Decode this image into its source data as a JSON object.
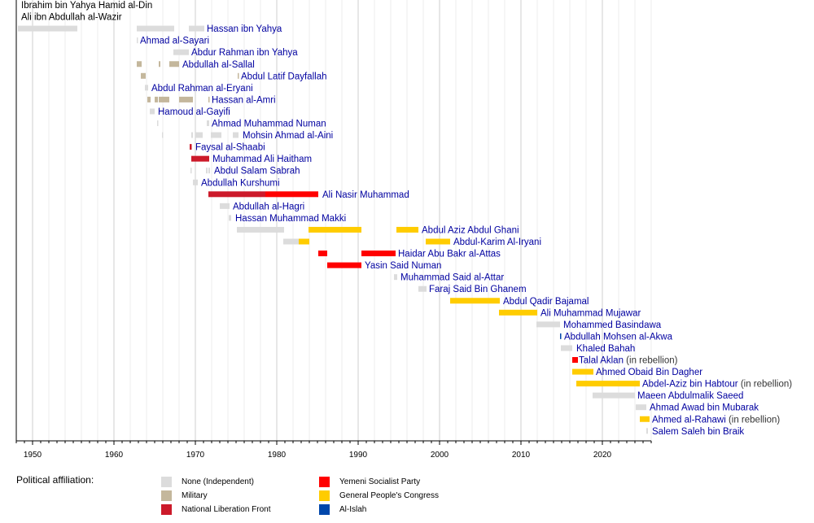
{
  "colors": {
    "none": "#dcdcdc",
    "military": "#c4b79c",
    "nlf": "#cc1a2a",
    "ysp": "#ff0000",
    "gpc": "#ffcc00",
    "islah": "#0047ab",
    "label_link": "#0000a0",
    "label_plain": "#000000",
    "note": "#333333"
  },
  "chart_data": {
    "type": "timeline",
    "title": "",
    "xlabel": "",
    "xlim": [
      1948,
      2026
    ],
    "x_ticks": [
      1950,
      1960,
      1970,
      1980,
      1990,
      2000,
      2010,
      2020
    ],
    "grid": true,
    "legend_title": "Political affiliation:",
    "legend": [
      {
        "key": "none",
        "label": "None (Independent)"
      },
      {
        "key": "military",
        "label": "Military"
      },
      {
        "key": "nlf",
        "label": "National Liberation Front"
      },
      {
        "key": "ysp",
        "label": "Yemeni Socialist Party"
      },
      {
        "key": "gpc",
        "label": "General People's Congress"
      },
      {
        "key": "islah",
        "label": "Al-Islah"
      }
    ],
    "rows": [
      {
        "name": "Ibrahim bin Yahya Hamid al-Din",
        "link": false,
        "note": "",
        "label_at": 1948.6,
        "spans": []
      },
      {
        "name": "Ali ibn Abdullah al-Wazir",
        "link": false,
        "note": "",
        "label_at": 1948.6,
        "spans": []
      },
      {
        "name": "Hassan ibn Yahya",
        "link": true,
        "note": "",
        "label_at": 1971.4,
        "spans": [
          [
            1948.2,
            1955.5,
            "none"
          ],
          [
            1962.8,
            1967.4,
            "none"
          ],
          [
            1969.2,
            1971.1,
            "none"
          ]
        ]
      },
      {
        "name": "Ahmad al-Sayari",
        "link": true,
        "note": "",
        "label_at": 1963.2,
        "spans": [
          [
            1962.8,
            1962.95,
            "none"
          ]
        ]
      },
      {
        "name": "Abdur Rahman ibn Yahya",
        "link": true,
        "note": "",
        "label_at": 1969.5,
        "spans": [
          [
            1967.3,
            1969.2,
            "none"
          ]
        ]
      },
      {
        "name": "Abdullah al-Sallal",
        "link": true,
        "note": "",
        "label_at": 1968.4,
        "spans": [
          [
            1962.8,
            1963.4,
            "military"
          ],
          [
            1965.5,
            1965.7,
            "military"
          ],
          [
            1966.8,
            1968.0,
            "military"
          ]
        ]
      },
      {
        "name": "Abdul Latif Dayfallah",
        "link": true,
        "note": "",
        "label_at": 1975.6,
        "spans": [
          [
            1963.3,
            1963.9,
            "military"
          ],
          [
            1975.2,
            1975.35,
            "military"
          ]
        ]
      },
      {
        "name": "Abdul Rahman al-Eryani",
        "link": true,
        "note": "",
        "label_at": 1964.6,
        "spans": [
          [
            1963.8,
            1964.2,
            "none"
          ]
        ]
      },
      {
        "name": "Hassan al-Amri",
        "link": true,
        "note": "",
        "label_at": 1972.0,
        "spans": [
          [
            1964.1,
            1964.5,
            "military"
          ],
          [
            1965.0,
            1965.4,
            "military"
          ],
          [
            1965.5,
            1966.8,
            "military"
          ],
          [
            1968.0,
            1969.7,
            "military"
          ],
          [
            1971.6,
            1971.75,
            "military"
          ]
        ]
      },
      {
        "name": "Hamoud al-Gayifi",
        "link": true,
        "note": "",
        "label_at": 1965.4,
        "spans": [
          [
            1964.4,
            1965.0,
            "none"
          ]
        ]
      },
      {
        "name": "Ahmad Muhammad Numan",
        "link": true,
        "note": "",
        "label_at": 1972.0,
        "spans": [
          [
            1965.3,
            1965.45,
            "none"
          ],
          [
            1971.4,
            1971.7,
            "none"
          ]
        ]
      },
      {
        "name": "Mohsin Ahmad al-Aini",
        "link": true,
        "note": "",
        "label_at": 1975.8,
        "spans": [
          [
            1965.9,
            1966.05,
            "none"
          ],
          [
            1969.5,
            1969.7,
            "none"
          ],
          [
            1970.0,
            1970.9,
            "none"
          ],
          [
            1971.9,
            1973.2,
            "none"
          ],
          [
            1974.6,
            1975.3,
            "none"
          ]
        ]
      },
      {
        "name": "Faysal al-Shaabi",
        "link": true,
        "note": "",
        "label_at": 1970.0,
        "spans": [
          [
            1969.3,
            1969.55,
            "nlf"
          ]
        ]
      },
      {
        "name": "Muhammad Ali Haitham",
        "link": true,
        "note": "",
        "label_at": 1972.1,
        "spans": [
          [
            1969.5,
            1971.7,
            "nlf"
          ]
        ]
      },
      {
        "name": "Abdul Salam Sabrah",
        "link": true,
        "note": "",
        "label_at": 1972.3,
        "spans": [
          [
            1969.4,
            1969.5,
            "none"
          ],
          [
            1971.3,
            1971.5,
            "none"
          ],
          [
            1971.6,
            1971.8,
            "none"
          ]
        ]
      },
      {
        "name": "Abdullah Kurshumi",
        "link": true,
        "note": "",
        "label_at": 1970.7,
        "spans": [
          [
            1969.7,
            1970.3,
            "none"
          ]
        ]
      },
      {
        "name": "Ali Nasir Muhammad",
        "link": true,
        "note": "",
        "label_at": 1985.6,
        "spans": [
          [
            1971.6,
            1978.6,
            "nlf"
          ],
          [
            1978.6,
            1985.1,
            "ysp"
          ]
        ]
      },
      {
        "name": "Abdullah al-Hagri",
        "link": true,
        "note": "",
        "label_at": 1974.6,
        "spans": [
          [
            1973.0,
            1974.2,
            "none"
          ]
        ]
      },
      {
        "name": "Hassan Muhammad Makki",
        "link": true,
        "note": "",
        "label_at": 1974.9,
        "spans": [
          [
            1974.1,
            1974.4,
            "none"
          ]
        ]
      },
      {
        "name": "Abdul Aziz Abdul Ghani",
        "link": true,
        "note": "",
        "label_at": 1997.8,
        "spans": [
          [
            1975.1,
            1980.9,
            "none"
          ],
          [
            1983.9,
            1990.4,
            "gpc"
          ],
          [
            1994.7,
            1997.4,
            "gpc"
          ]
        ]
      },
      {
        "name": "Abdul-Karim Al-Iryani",
        "link": true,
        "note": "",
        "label_at": 2001.7,
        "spans": [
          [
            1980.8,
            1982.7,
            "none"
          ],
          [
            1982.7,
            1984.0,
            "gpc"
          ],
          [
            1998.3,
            2001.3,
            "gpc"
          ]
        ]
      },
      {
        "name": "Haidar Abu Bakr al-Attas",
        "link": true,
        "note": "",
        "label_at": 1994.9,
        "spans": [
          [
            1985.1,
            1986.2,
            "ysp"
          ],
          [
            1990.4,
            1994.6,
            "ysp"
          ]
        ]
      },
      {
        "name": "Yasin Said Numan",
        "link": true,
        "note": "",
        "label_at": 1990.8,
        "spans": [
          [
            1986.2,
            1990.4,
            "ysp"
          ]
        ]
      },
      {
        "name": "Muhammad Said al-Attar",
        "link": true,
        "note": "",
        "label_at": 1995.2,
        "spans": [
          [
            1994.4,
            1994.8,
            "none"
          ]
        ]
      },
      {
        "name": "Faraj Said Bin Ghanem",
        "link": true,
        "note": "",
        "label_at": 1998.7,
        "spans": [
          [
            1997.4,
            1998.4,
            "none"
          ]
        ]
      },
      {
        "name": "Abdul Qadir Bajamal",
        "link": true,
        "note": "",
        "label_at": 2007.8,
        "spans": [
          [
            2001.3,
            2007.4,
            "gpc"
          ]
        ]
      },
      {
        "name": "Ali Muhammad Mujawar",
        "link": true,
        "note": "",
        "label_at": 2012.4,
        "spans": [
          [
            2007.3,
            2012.0,
            "gpc"
          ]
        ]
      },
      {
        "name": "Mohammed Basindawa",
        "link": true,
        "note": "",
        "label_at": 2015.2,
        "spans": [
          [
            2011.9,
            2014.8,
            "none"
          ]
        ]
      },
      {
        "name": "Abdullah Mohsen al-Akwa",
        "link": true,
        "note": "",
        "label_at": 2015.3,
        "spans": [
          [
            2014.8,
            2014.95,
            "islah"
          ]
        ]
      },
      {
        "name": "Khaled Bahah",
        "link": true,
        "note": "",
        "label_at": 2016.8,
        "spans": [
          [
            2014.9,
            2016.3,
            "none"
          ]
        ]
      },
      {
        "name": "Talal Aklan",
        "link": true,
        "note": "(in rebellion)",
        "label_at": 2017.1,
        "spans": [
          [
            2016.3,
            2017.0,
            "ysp"
          ]
        ]
      },
      {
        "name": "Ahmed Obaid Bin Dagher",
        "link": true,
        "note": "",
        "label_at": 2019.2,
        "spans": [
          [
            2016.3,
            2018.9,
            "gpc"
          ]
        ]
      },
      {
        "name": "Abdel-Aziz bin Habtour",
        "link": true,
        "note": "",
        "note2": "(in rebellion)",
        "label_at": 2024.9,
        "spans": [
          [
            2016.8,
            2024.6,
            "gpc"
          ]
        ]
      },
      {
        "name": "Maeen Abdulmalik Saeed",
        "link": true,
        "note": "",
        "label_at": 2024.3,
        "spans": [
          [
            2018.8,
            2024.0,
            "none"
          ]
        ]
      },
      {
        "name": "Ahmad Awad bin Mubarak",
        "link": true,
        "note": "",
        "label_at": 2025.8,
        "spans": [
          [
            2024.1,
            2025.4,
            "none"
          ]
        ]
      },
      {
        "name": "Ahmed al-Rahawi",
        "link": true,
        "note": "(in rebellion)",
        "label_at": 2026.1,
        "spans": [
          [
            2024.6,
            2025.8,
            "gpc"
          ]
        ]
      },
      {
        "name": "Salem Saleh bin Braik",
        "link": true,
        "note": "",
        "label_at": 2026.1,
        "spans": [
          [
            2025.4,
            2025.6,
            "none"
          ]
        ]
      }
    ]
  }
}
